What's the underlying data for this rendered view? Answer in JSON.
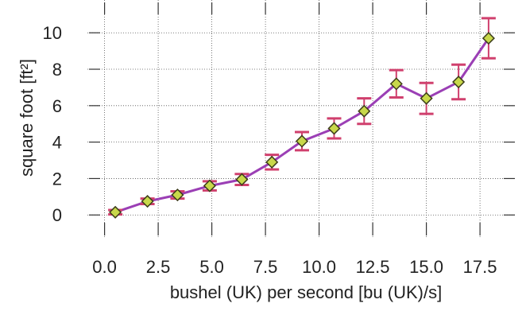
{
  "chart_data": {
    "type": "line",
    "xlabel": "bushel (UK) per second [bu (UK)/s]",
    "ylabel": "square foot [ft²]",
    "xlim": [
      -0.8,
      19.2
    ],
    "ylim": [
      -1.3,
      11.8
    ],
    "xticks": [
      0.0,
      2.5,
      5.0,
      7.5,
      10.0,
      12.5,
      15.0,
      17.5
    ],
    "xtick_labels": [
      "0.0",
      "2.5",
      "5.0",
      "7.5",
      "10.0",
      "12.5",
      "15.0",
      "17.5"
    ],
    "yticks": [
      0,
      2,
      4,
      6,
      8,
      10
    ],
    "ytick_labels": [
      "0",
      "2",
      "4",
      "6",
      "8",
      "10"
    ],
    "grid": true,
    "series": [
      {
        "x": [
          0.5,
          2.0,
          3.4,
          4.9,
          6.4,
          7.8,
          9.2,
          10.7,
          12.1,
          13.6,
          15.0,
          16.5,
          17.9
        ],
        "y": [
          0.15,
          0.75,
          1.1,
          1.6,
          1.95,
          2.9,
          4.05,
          4.75,
          5.7,
          7.2,
          6.4,
          7.3,
          9.7
        ],
        "err": [
          0.12,
          0.15,
          0.2,
          0.25,
          0.3,
          0.4,
          0.5,
          0.55,
          0.7,
          0.75,
          0.85,
          0.95,
          1.1
        ],
        "line_color": "#9b3fb5",
        "marker_fill": "#c8d84a",
        "marker_edge": "#3d3d1a",
        "errorbar_color": "#d0406e"
      }
    ]
  }
}
